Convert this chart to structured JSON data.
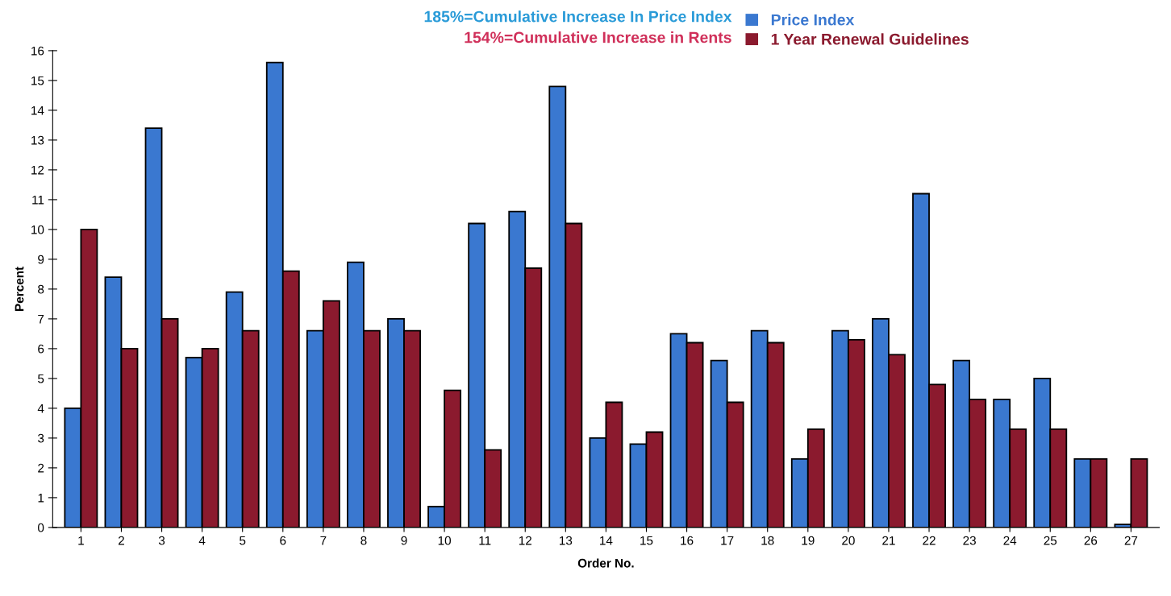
{
  "chart_data": {
    "type": "bar",
    "categories": [
      "1",
      "2",
      "3",
      "4",
      "5",
      "6",
      "7",
      "8",
      "9",
      "10",
      "11",
      "12",
      "13",
      "14",
      "15",
      "16",
      "17",
      "18",
      "19",
      "20",
      "21",
      "22",
      "23",
      "24",
      "25",
      "26",
      "27"
    ],
    "series": [
      {
        "name": "Price Index",
        "color": "#3a78d0",
        "values": [
          4.0,
          8.4,
          13.4,
          5.7,
          7.9,
          15.6,
          6.6,
          8.9,
          7.0,
          0.7,
          10.2,
          10.6,
          14.8,
          3.0,
          2.8,
          6.5,
          5.6,
          6.6,
          2.3,
          6.6,
          7.0,
          11.2,
          5.6,
          4.3,
          5.0,
          2.3,
          0.1
        ]
      },
      {
        "name": "1 Year Renewal Guidelines",
        "color": "#8b1a2e",
        "values": [
          10.0,
          6.0,
          7.0,
          6.0,
          6.6,
          8.6,
          7.6,
          6.6,
          6.6,
          4.6,
          2.6,
          8.7,
          10.2,
          4.2,
          3.2,
          6.2,
          4.2,
          6.2,
          3.3,
          6.3,
          5.8,
          4.8,
          4.3,
          3.3,
          3.3,
          2.3,
          2.3
        ]
      }
    ],
    "annotations": [
      "185%=Cumulative Increase In Price Index",
      "154%=Cumulative Increase in Rents"
    ],
    "xlabel": "Order No.",
    "ylabel": "Percent",
    "ylim": [
      0,
      16
    ],
    "yticks": [
      0,
      1,
      2,
      3,
      4,
      5,
      6,
      7,
      8,
      9,
      10,
      11,
      12,
      13,
      14,
      15,
      16
    ],
    "legend": "top",
    "grid": false
  }
}
